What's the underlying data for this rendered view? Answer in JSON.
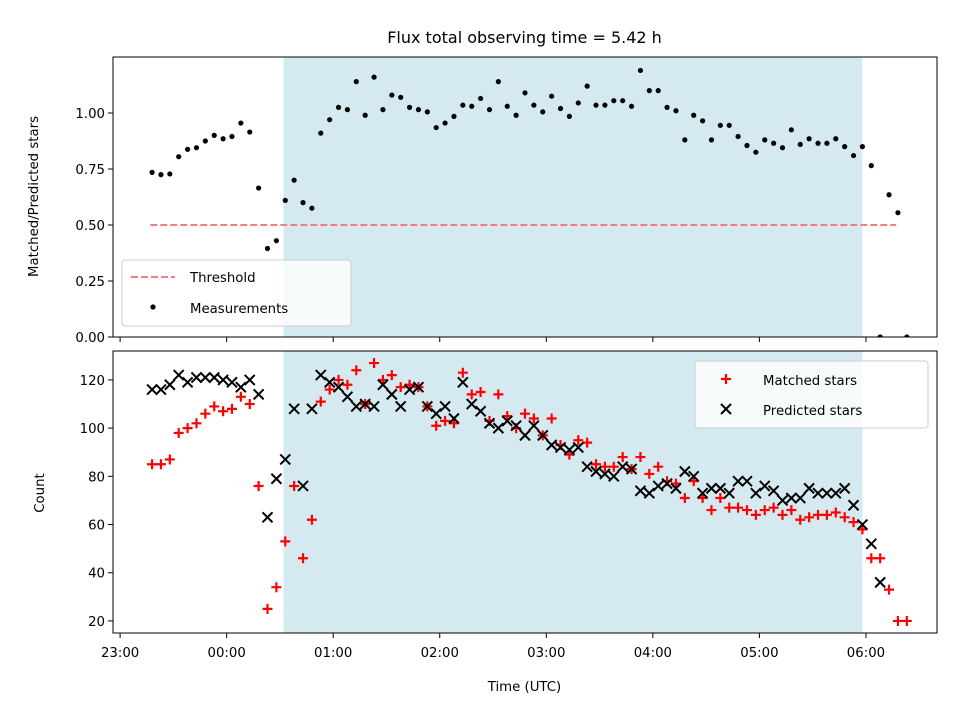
{
  "chart_data": [
    {
      "type": "scatter",
      "title": "Flux total observing time = 5.42 h",
      "xlabel": "",
      "ylabel": "Matched/Predicted stars",
      "xlim": [
        "22:56",
        "06:40"
      ],
      "ylim": [
        0,
        1.25
      ],
      "yticks": [
        "0.00",
        "0.25",
        "0.50",
        "0.75",
        "1.00"
      ],
      "yticks_values": [
        0,
        0.25,
        0.5,
        0.75,
        1.0
      ],
      "shaded_region": [
        "00:32",
        "05:58"
      ],
      "shade_color": "#d4eaf0",
      "legend_position": "lower-left",
      "threshold": {
        "label": "Threshold",
        "value": 0.5,
        "x_range": [
          "23:17",
          "06:17"
        ],
        "color": "#f08080"
      },
      "series": [
        {
          "name": "Measurements",
          "color": "#000000",
          "points": [
            [
              "23:18",
              0.735
            ],
            [
              "23:23",
              0.725
            ],
            [
              "23:28",
              0.728
            ],
            [
              "23:33",
              0.805
            ],
            [
              "23:38",
              0.838
            ],
            [
              "23:43",
              0.845
            ],
            [
              "23:48",
              0.875
            ],
            [
              "23:53",
              0.9
            ],
            [
              "23:58",
              0.885
            ],
            [
              "00:03",
              0.895
            ],
            [
              "00:08",
              0.955
            ],
            [
              "00:13",
              0.915
            ],
            [
              "00:18",
              0.665
            ],
            [
              "00:23",
              0.395
            ],
            [
              "00:28",
              0.43
            ],
            [
              "00:33",
              0.61
            ],
            [
              "00:38",
              0.7
            ],
            [
              "00:43",
              0.6
            ],
            [
              "00:48",
              0.575
            ],
            [
              "00:53",
              0.91
            ],
            [
              "00:58",
              0.97
            ],
            [
              "01:03",
              1.025
            ],
            [
              "01:08",
              1.015
            ],
            [
              "01:13",
              1.14
            ],
            [
              "01:18",
              0.99
            ],
            [
              "01:23",
              1.16
            ],
            [
              "01:28",
              1.015
            ],
            [
              "01:33",
              1.08
            ],
            [
              "01:38",
              1.07
            ],
            [
              "01:43",
              1.025
            ],
            [
              "01:48",
              1.015
            ],
            [
              "01:53",
              1.005
            ],
            [
              "01:58",
              0.935
            ],
            [
              "02:03",
              0.955
            ],
            [
              "02:08",
              0.985
            ],
            [
              "02:13",
              1.035
            ],
            [
              "02:18",
              1.03
            ],
            [
              "02:23",
              1.065
            ],
            [
              "02:28",
              1.015
            ],
            [
              "02:33",
              1.14
            ],
            [
              "02:38",
              1.03
            ],
            [
              "02:43",
              0.99
            ],
            [
              "02:48",
              1.09
            ],
            [
              "02:53",
              1.035
            ],
            [
              "02:58",
              1.005
            ],
            [
              "03:03",
              1.075
            ],
            [
              "03:08",
              1.02
            ],
            [
              "03:13",
              0.985
            ],
            [
              "03:18",
              1.045
            ],
            [
              "03:23",
              1.12
            ],
            [
              "03:28",
              1.035
            ],
            [
              "03:33",
              1.035
            ],
            [
              "03:38",
              1.055
            ],
            [
              "03:43",
              1.055
            ],
            [
              "03:48",
              1.03
            ],
            [
              "03:53",
              1.19
            ],
            [
              "03:58",
              1.1
            ],
            [
              "04:03",
              1.1
            ],
            [
              "04:08",
              1.025
            ],
            [
              "04:13",
              1.01
            ],
            [
              "04:18",
              0.88
            ],
            [
              "04:23",
              0.99
            ],
            [
              "04:28",
              0.965
            ],
            [
              "04:33",
              0.88
            ],
            [
              "04:38",
              0.945
            ],
            [
              "04:43",
              0.945
            ],
            [
              "04:48",
              0.895
            ],
            [
              "04:53",
              0.855
            ],
            [
              "04:58",
              0.825
            ],
            [
              "05:03",
              0.88
            ],
            [
              "05:08",
              0.865
            ],
            [
              "05:13",
              0.845
            ],
            [
              "05:18",
              0.925
            ],
            [
              "05:23",
              0.86
            ],
            [
              "05:28",
              0.885
            ],
            [
              "05:33",
              0.865
            ],
            [
              "05:38",
              0.865
            ],
            [
              "05:43",
              0.885
            ],
            [
              "05:48",
              0.85
            ],
            [
              "05:53",
              0.81
            ],
            [
              "05:58",
              0.85
            ],
            [
              "06:03",
              0.765
            ],
            [
              "06:08",
              0.0
            ],
            [
              "06:13",
              0.635
            ],
            [
              "06:18",
              0.555
            ],
            [
              "06:23",
              0.0
            ]
          ]
        }
      ]
    },
    {
      "type": "scatter",
      "title": "",
      "xlabel": "Time (UTC)",
      "ylabel": "Count",
      "xlim": [
        "22:56",
        "06:40"
      ],
      "ylim": [
        15,
        132
      ],
      "xticks": [
        "23:00",
        "00:00",
        "01:00",
        "02:00",
        "03:00",
        "04:00",
        "05:00",
        "06:00"
      ],
      "yticks": [
        "20",
        "40",
        "60",
        "80",
        "100",
        "120"
      ],
      "yticks_values": [
        20,
        40,
        60,
        80,
        100,
        120
      ],
      "shaded_region": [
        "00:32",
        "05:58"
      ],
      "shade_color": "#d4eaf0",
      "legend_position": "upper-right",
      "series": [
        {
          "name": "Matched stars",
          "marker": "plus",
          "color": "#ff0000",
          "points": [
            [
              "23:18",
              85
            ],
            [
              "23:23",
              85
            ],
            [
              "23:28",
              87
            ],
            [
              "23:33",
              98
            ],
            [
              "23:38",
              100
            ],
            [
              "23:43",
              102
            ],
            [
              "23:48",
              106
            ],
            [
              "23:53",
              109
            ],
            [
              "23:58",
              107
            ],
            [
              "00:03",
              108
            ],
            [
              "00:08",
              113
            ],
            [
              "00:13",
              110
            ],
            [
              "00:18",
              76
            ],
            [
              "00:23",
              25
            ],
            [
              "00:28",
              34
            ],
            [
              "00:33",
              53
            ],
            [
              "00:38",
              76
            ],
            [
              "00:43",
              46
            ],
            [
              "00:48",
              62
            ],
            [
              "00:53",
              111
            ],
            [
              "00:58",
              116
            ],
            [
              "01:03",
              120
            ],
            [
              "01:08",
              118
            ],
            [
              "01:13",
              124
            ],
            [
              "01:18",
              110
            ],
            [
              "01:23",
              127
            ],
            [
              "01:28",
              120
            ],
            [
              "01:33",
              122
            ],
            [
              "01:38",
              117
            ],
            [
              "01:43",
              118
            ],
            [
              "01:48",
              117
            ],
            [
              "01:53",
              109
            ],
            [
              "01:58",
              101
            ],
            [
              "02:03",
              103
            ],
            [
              "02:08",
              102
            ],
            [
              "02:13",
              123
            ],
            [
              "02:18",
              114
            ],
            [
              "02:23",
              115
            ],
            [
              "02:28",
              103
            ],
            [
              "02:33",
              114
            ],
            [
              "02:38",
              105
            ],
            [
              "02:43",
              100
            ],
            [
              "02:48",
              106
            ],
            [
              "02:53",
              104
            ],
            [
              "02:58",
              97
            ],
            [
              "03:03",
              104
            ],
            [
              "03:08",
              93
            ],
            [
              "03:13",
              89
            ],
            [
              "03:18",
              95
            ],
            [
              "03:23",
              94
            ],
            [
              "03:28",
              85
            ],
            [
              "03:33",
              84
            ],
            [
              "03:38",
              84
            ],
            [
              "03:43",
              88
            ],
            [
              "03:48",
              83
            ],
            [
              "03:53",
              88
            ],
            [
              "03:58",
              81
            ],
            [
              "04:03",
              84
            ],
            [
              "04:08",
              78
            ],
            [
              "04:13",
              77
            ],
            [
              "04:18",
              71
            ],
            [
              "04:23",
              78
            ],
            [
              "04:28",
              71
            ],
            [
              "04:33",
              66
            ],
            [
              "04:38",
              71
            ],
            [
              "04:43",
              67
            ],
            [
              "04:48",
              67
            ],
            [
              "04:53",
              66
            ],
            [
              "04:58",
              64
            ],
            [
              "05:03",
              66
            ],
            [
              "05:08",
              67
            ],
            [
              "05:13",
              64
            ],
            [
              "05:18",
              66
            ],
            [
              "05:23",
              62
            ],
            [
              "05:28",
              63
            ],
            [
              "05:33",
              64
            ],
            [
              "05:38",
              64
            ],
            [
              "05:43",
              65
            ],
            [
              "05:48",
              63
            ],
            [
              "05:53",
              61
            ],
            [
              "05:58",
              58
            ],
            [
              "06:03",
              46
            ],
            [
              "06:08",
              46
            ],
            [
              "06:13",
              33
            ],
            [
              "06:18",
              20
            ],
            [
              "06:23",
              20
            ]
          ]
        },
        {
          "name": "Predicted stars",
          "marker": "cross",
          "color": "#000000",
          "points": [
            [
              "23:18",
              116
            ],
            [
              "23:23",
              116
            ],
            [
              "23:28",
              118
            ],
            [
              "23:33",
              122
            ],
            [
              "23:38",
              119
            ],
            [
              "23:43",
              121
            ],
            [
              "23:48",
              121
            ],
            [
              "23:53",
              121
            ],
            [
              "23:58",
              120
            ],
            [
              "00:03",
              119
            ],
            [
              "00:08",
              117
            ],
            [
              "00:13",
              120
            ],
            [
              "00:18",
              114
            ],
            [
              "00:23",
              63
            ],
            [
              "00:28",
              79
            ],
            [
              "00:33",
              87
            ],
            [
              "00:38",
              108
            ],
            [
              "00:43",
              76
            ],
            [
              "00:48",
              108
            ],
            [
              "00:53",
              122
            ],
            [
              "00:58",
              119
            ],
            [
              "01:03",
              117
            ],
            [
              "01:08",
              113
            ],
            [
              "01:13",
              109
            ],
            [
              "01:18",
              110
            ],
            [
              "01:23",
              109
            ],
            [
              "01:28",
              118
            ],
            [
              "01:33",
              114
            ],
            [
              "01:38",
              109
            ],
            [
              "01:43",
              116
            ],
            [
              "01:48",
              117
            ],
            [
              "01:53",
              109
            ],
            [
              "01:58",
              106
            ],
            [
              "02:03",
              109
            ],
            [
              "02:08",
              104
            ],
            [
              "02:13",
              119
            ],
            [
              "02:18",
              110
            ],
            [
              "02:23",
              107
            ],
            [
              "02:28",
              102
            ],
            [
              "02:33",
              100
            ],
            [
              "02:38",
              103
            ],
            [
              "02:43",
              101
            ],
            [
              "02:48",
              97
            ],
            [
              "02:53",
              101
            ],
            [
              "02:58",
              97
            ],
            [
              "03:03",
              93
            ],
            [
              "03:08",
              92
            ],
            [
              "03:13",
              91
            ],
            [
              "03:18",
              92
            ],
            [
              "03:23",
              84
            ],
            [
              "03:28",
              82
            ],
            [
              "03:33",
              81
            ],
            [
              "03:38",
              80
            ],
            [
              "03:43",
              84
            ],
            [
              "03:48",
              83
            ],
            [
              "03:53",
              74
            ],
            [
              "03:58",
              73
            ],
            [
              "04:03",
              76
            ],
            [
              "04:08",
              77
            ],
            [
              "04:13",
              75
            ],
            [
              "04:18",
              82
            ],
            [
              "04:23",
              80
            ],
            [
              "04:28",
              73
            ],
            [
              "04:33",
              75
            ],
            [
              "04:38",
              75
            ],
            [
              "04:43",
              73
            ],
            [
              "04:48",
              78
            ],
            [
              "04:53",
              78
            ],
            [
              "04:58",
              73
            ],
            [
              "05:03",
              76
            ],
            [
              "05:08",
              74
            ],
            [
              "05:13",
              70
            ],
            [
              "05:18",
              71
            ],
            [
              "05:23",
              71
            ],
            [
              "05:28",
              75
            ],
            [
              "05:33",
              73
            ],
            [
              "05:38",
              73
            ],
            [
              "05:43",
              73
            ],
            [
              "05:48",
              75
            ],
            [
              "05:53",
              68
            ],
            [
              "05:58",
              60
            ],
            [
              "06:03",
              52
            ],
            [
              "06:08",
              36
            ]
          ]
        }
      ]
    }
  ]
}
